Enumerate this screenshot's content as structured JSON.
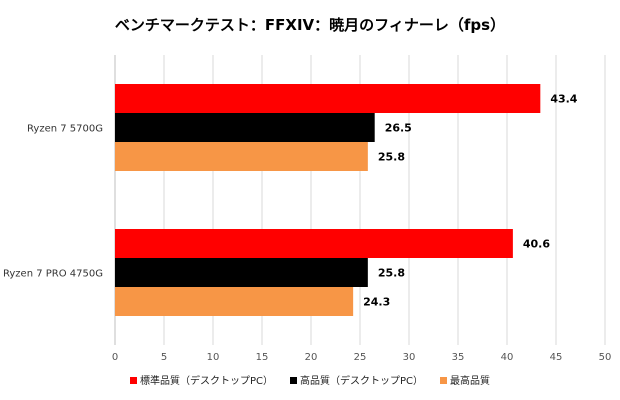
{
  "chart_data": {
    "type": "bar",
    "orientation": "horizontal",
    "title": "ベンチマークテスト：FFXIV：暁月のフィナーレ（fps）",
    "categories": [
      "Ryzen 7 5700G",
      "Ryzen 7 PRO 4750G"
    ],
    "series": [
      {
        "name": "標準品質（デスクトップPC）",
        "color": "#ff0000",
        "values": [
          43.4,
          40.6
        ]
      },
      {
        "name": "高品質（デスクトップPC）",
        "color": "#000000",
        "values": [
          26.5,
          25.8
        ]
      },
      {
        "name": "最高品質",
        "color": "#f79646",
        "values": [
          25.8,
          24.3
        ]
      }
    ],
    "x_ticks": [
      0,
      5,
      10,
      15,
      20,
      25,
      30,
      35,
      40,
      45,
      50
    ],
    "xlim": [
      0,
      50
    ],
    "grid": true,
    "legend_position": "bottom",
    "data_labels": true
  }
}
